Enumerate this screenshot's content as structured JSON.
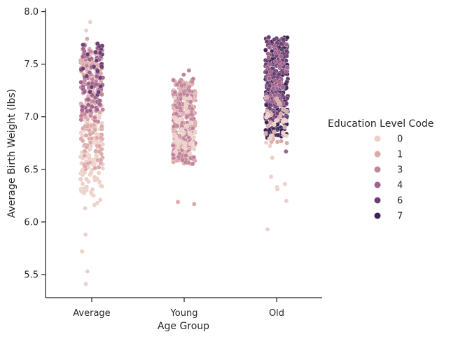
{
  "chart_data": {
    "type": "scatter",
    "subtype": "strip",
    "xlabel": "Age Group",
    "ylabel": "Average Birth Weight (lbs)",
    "ylim": [
      5.28,
      8.03
    ],
    "yticks": [
      5.5,
      6.0,
      6.5,
      7.0,
      7.5,
      8.0
    ],
    "ytick_labels": [
      "5.5",
      "6.0",
      "6.5",
      "7.0",
      "7.5",
      "8.0"
    ],
    "categories": [
      "Average",
      "Young",
      "Old"
    ],
    "grid": false,
    "legend": {
      "title": "Education Level Code",
      "placement": "right",
      "entries": [
        {
          "label": "0",
          "color": "#ecd1c9"
        },
        {
          "label": "1",
          "color": "#dcaaa9"
        },
        {
          "label": "3",
          "color": "#c2849a"
        },
        {
          "label": "4",
          "color": "#a1628c"
        },
        {
          "label": "6",
          "color": "#6e3f72"
        },
        {
          "label": "7",
          "color": "#3e2453"
        }
      ]
    },
    "series": [
      {
        "category": "Average",
        "outliers": [
          {
            "y": 7.9,
            "code": "0"
          },
          {
            "y": 7.82,
            "code": "0"
          },
          {
            "y": 7.74,
            "code": "1"
          },
          {
            "y": 6.21,
            "code": "0"
          },
          {
            "y": 6.16,
            "code": "0"
          },
          {
            "y": 6.13,
            "code": "0"
          },
          {
            "y": 6.18,
            "code": "0"
          },
          {
            "y": 5.88,
            "code": "0"
          },
          {
            "y": 5.72,
            "code": "0"
          },
          {
            "y": 5.53,
            "code": "0"
          },
          {
            "y": 5.41,
            "code": "0"
          }
        ],
        "bands": [
          {
            "code": "0",
            "min": 6.25,
            "max": 7.15,
            "n": 150
          },
          {
            "code": "1",
            "min": 6.5,
            "max": 7.65,
            "n": 140
          },
          {
            "code": "3",
            "min": 6.95,
            "max": 7.7,
            "n": 60
          },
          {
            "code": "4",
            "min": 7.05,
            "max": 7.7,
            "n": 55
          },
          {
            "code": "6",
            "min": 7.2,
            "max": 7.7,
            "n": 25
          }
        ]
      },
      {
        "category": "Young",
        "outliers": [
          {
            "y": 7.44,
            "code": "3"
          },
          {
            "y": 7.4,
            "code": "3"
          },
          {
            "y": 7.36,
            "code": "3"
          },
          {
            "y": 6.19,
            "code": "1"
          },
          {
            "y": 6.17,
            "code": "1"
          }
        ],
        "bands": [
          {
            "code": "1",
            "min": 6.55,
            "max": 7.35,
            "n": 250
          },
          {
            "code": "3",
            "min": 6.55,
            "max": 7.35,
            "n": 140
          },
          {
            "code": "0",
            "min": 6.6,
            "max": 7.2,
            "n": 40
          }
        ]
      },
      {
        "category": "Old",
        "outliers": [
          {
            "y": 6.67,
            "code": "4"
          },
          {
            "y": 6.61,
            "code": "0"
          },
          {
            "y": 6.43,
            "code": "0"
          },
          {
            "y": 6.33,
            "code": "0"
          },
          {
            "y": 6.31,
            "code": "0"
          },
          {
            "y": 6.36,
            "code": "0"
          },
          {
            "y": 6.2,
            "code": "0"
          },
          {
            "y": 5.93,
            "code": "0"
          },
          {
            "y": 6.75,
            "code": "1"
          }
        ],
        "bands": [
          {
            "code": "7",
            "min": 6.8,
            "max": 7.76,
            "n": 260
          },
          {
            "code": "6",
            "min": 6.95,
            "max": 7.76,
            "n": 140
          },
          {
            "code": "4",
            "min": 7.1,
            "max": 7.7,
            "n": 50
          },
          {
            "code": "1",
            "min": 6.75,
            "max": 7.2,
            "n": 25
          },
          {
            "code": "0",
            "min": 6.72,
            "max": 7.05,
            "n": 15
          }
        ]
      }
    ]
  }
}
